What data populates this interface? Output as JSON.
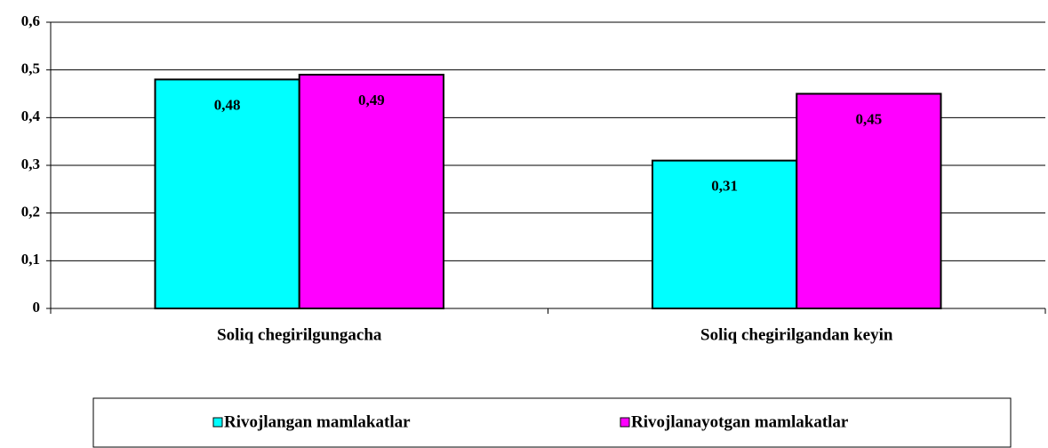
{
  "chart_data": {
    "type": "bar",
    "categories": [
      "Soliq chegirilgungacha",
      "Soliq chegirilgandan keyin"
    ],
    "series": [
      {
        "name": "Rivojlangan mamlakatlar",
        "color": "#00ffff",
        "values": [
          0.48,
          0.31
        ],
        "value_labels": [
          "0,48",
          "0,31"
        ]
      },
      {
        "name": "Rivojlanayotgan mamlakatlar",
        "color": "#ff00ff",
        "values": [
          0.49,
          0.45
        ],
        "value_labels": [
          "0,49",
          "0,45"
        ]
      }
    ],
    "ylim": [
      0,
      0.6
    ],
    "yticks": [
      0,
      {
        "value": 0.1,
        "label": "0,1"
      },
      {
        "value": 0.2,
        "label": "0,2"
      },
      {
        "value": 0.3,
        "label": "0,3"
      },
      {
        "value": 0.4,
        "label": "0,4"
      },
      {
        "value": 0.5,
        "label": "0,5"
      },
      {
        "value": 0.6,
        "label": "0,6"
      }
    ],
    "grid": true,
    "legend": "bottom"
  }
}
